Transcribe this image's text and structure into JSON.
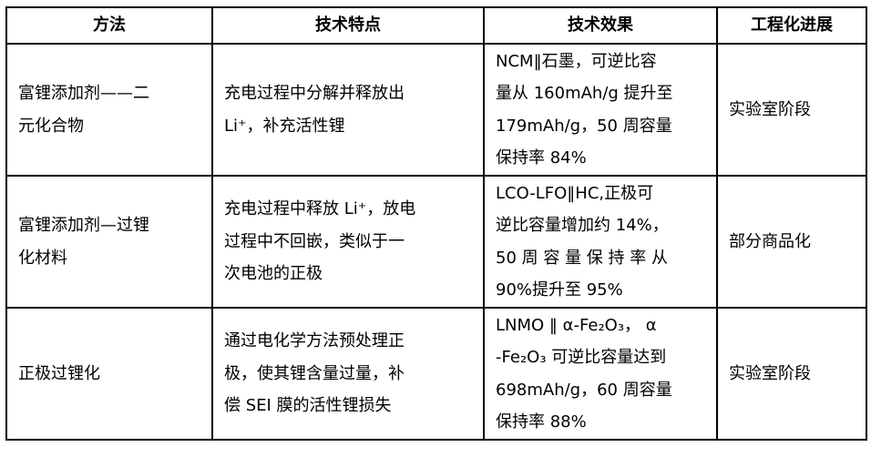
{
  "table": {
    "headers": [
      "方法",
      "技术特点",
      "技术效果",
      "工程化进展"
    ],
    "rows": [
      {
        "method": [
          "富锂添加剂——二",
          "元化合物"
        ],
        "features": [
          "充电过程中分解并释放出",
          "Li⁺，补充活性锂"
        ],
        "effects": [
          "NCM‖石墨，可逆比容",
          "量从 160mAh/g 提升至",
          "179mAh/g，50 周容量",
          "保持率 84%"
        ],
        "progress": [
          "实验室阶段"
        ]
      },
      {
        "method": [
          "富锂添加剂—过锂",
          "化材料"
        ],
        "features": [
          "充电过程中释放 Li⁺，放电",
          "过程中不回嵌，类似于一",
          "次电池的正极"
        ],
        "effects": [
          "LCO-LFO‖HC,正极可",
          "逆比容量增加约 14%，",
          "50 周 容 量 保 持 率 从",
          "90%提升至 95%"
        ],
        "progress": [
          "部分商品化"
        ]
      },
      {
        "method": [
          "正极过锂化"
        ],
        "features": [
          "通过电化学方法预处理正",
          "极，使其锂含量过量，补",
          "偿 SEI 膜的活性锂损失"
        ],
        "effects": [
          "LNMO ‖ α-Fe₂O₃， α",
          "-Fe₂O₃ 可逆比容量达到",
          "698mAh/g，60 周容量",
          "保持率 88%"
        ],
        "progress": [
          "实验室阶段"
        ]
      }
    ]
  }
}
